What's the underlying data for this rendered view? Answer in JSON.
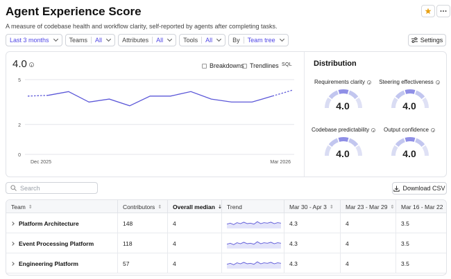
{
  "header": {
    "title": "Agent Experience Score",
    "subtitle": "A measure of codebase health and workflow clarity, self-reported by agents after completing tasks."
  },
  "actions": {
    "star_icon": "star-icon",
    "more_icon": "more-icon",
    "star_color": "#e8a013"
  },
  "filters": {
    "period": "Last 3 months",
    "teams_label": "Teams",
    "teams_value": "All",
    "attributes_label": "Attributes",
    "attributes_value": "All",
    "tools_label": "Tools",
    "tools_value": "All",
    "by_label": "By",
    "by_value": "Team tree"
  },
  "settings_label": "Settings",
  "score_panel": {
    "score": "4.0",
    "breakdowns_label": "Breakdowns",
    "trendlines_label": "Trendlines",
    "sql_label": "SQL"
  },
  "chart_data": {
    "type": "line",
    "x_tick_labels": [
      "Dec 2025",
      "Mar 2026"
    ],
    "y_ticks": [
      0,
      2,
      5
    ],
    "ylim": [
      0,
      5
    ],
    "series": [
      {
        "values": [
          3.9,
          3.95,
          4.2,
          3.5,
          3.7,
          3.25,
          3.9,
          3.9,
          4.2,
          3.7,
          3.5,
          3.5,
          3.9,
          4.3
        ]
      }
    ],
    "dashed_start_points": 2,
    "dashed_end_points": 2,
    "color": "#5b57d8"
  },
  "distribution": {
    "title": "Distribution",
    "gauges": [
      {
        "label": "Requirements clarity",
        "value": "4.0"
      },
      {
        "label": "Steering effectiveness",
        "value": "4.0"
      },
      {
        "label": "Codebase predictability",
        "value": "4.0"
      },
      {
        "label": "Output confidence",
        "value": "4.0"
      }
    ]
  },
  "search": {
    "placeholder": "Search"
  },
  "download_label": "Download CSV",
  "table": {
    "columns": [
      "Team",
      "Contributors",
      "Overall median",
      "Trend",
      "Mar 30 - Apr 3",
      "Mar 23 - Mar 29",
      "Mar 16 - Mar 22"
    ],
    "rows": [
      {
        "team": "Platform Architecture",
        "contributors": "148",
        "median": "4",
        "w1": "4.3",
        "w2": "4",
        "w3": "3.5"
      },
      {
        "team": "Event Processing Platform",
        "contributors": "118",
        "median": "4",
        "w1": "4.3",
        "w2": "4",
        "w3": "3.5"
      },
      {
        "team": "Engineering Platform",
        "contributors": "57",
        "median": "4",
        "w1": "4.3",
        "w2": "4",
        "w3": "3.5"
      }
    ]
  }
}
